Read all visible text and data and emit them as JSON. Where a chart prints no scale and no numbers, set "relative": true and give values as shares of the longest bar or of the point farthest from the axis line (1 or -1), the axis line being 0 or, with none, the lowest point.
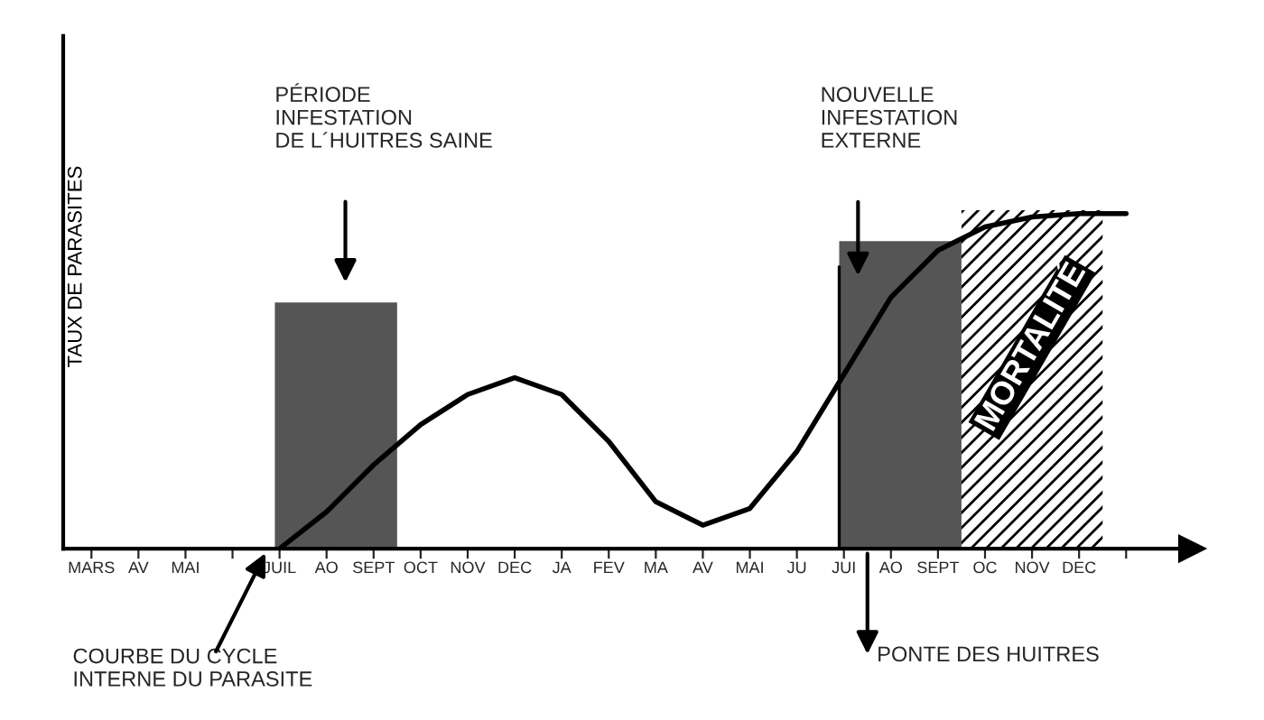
{
  "chart_data": {
    "type": "line",
    "relative": true,
    "ylabel": "TAUX DE PARASITES",
    "categories": [
      "MARS",
      "AV",
      "MAI",
      null,
      "JUIL",
      "AO",
      "SEPT",
      "OCT",
      "NOV",
      "DEC",
      "JA",
      "FEV",
      "MA",
      "AV",
      "MAI",
      "JU",
      "JUI",
      "AO",
      "SEPT",
      "OC",
      "NOV",
      "DEC",
      null
    ],
    "series": [
      {
        "color": "#000000",
        "values": [
          null,
          null,
          null,
          null,
          0.0,
          0.11,
          0.25,
          0.37,
          0.46,
          0.51,
          0.46,
          0.32,
          0.14,
          0.07,
          0.12,
          0.29,
          0.52,
          0.75,
          0.89,
          0.96,
          0.99,
          1.0,
          1.0
        ]
      }
    ],
    "bands": [
      {
        "axis": "x",
        "from": "JUIL",
        "to": "SEPT",
        "color": "#555555"
      }
    ],
    "ref_lines": [
      {
        "axis": "x",
        "value": "JUI"
      }
    ],
    "annotations": [
      "PÉRIODE\nINFESTATION\nDE L´HUITRES SAINE",
      "NOUVELLE\nINFESTATION\nEXTERNE",
      "COURBE DU CYCLE\nINTERNE DU PARASITE",
      "PONTE DES HUITRES",
      "MORTALITÉ"
    ],
    "grid": false,
    "legend": false,
    "marker": "none",
    "line_style": "solid"
  }
}
